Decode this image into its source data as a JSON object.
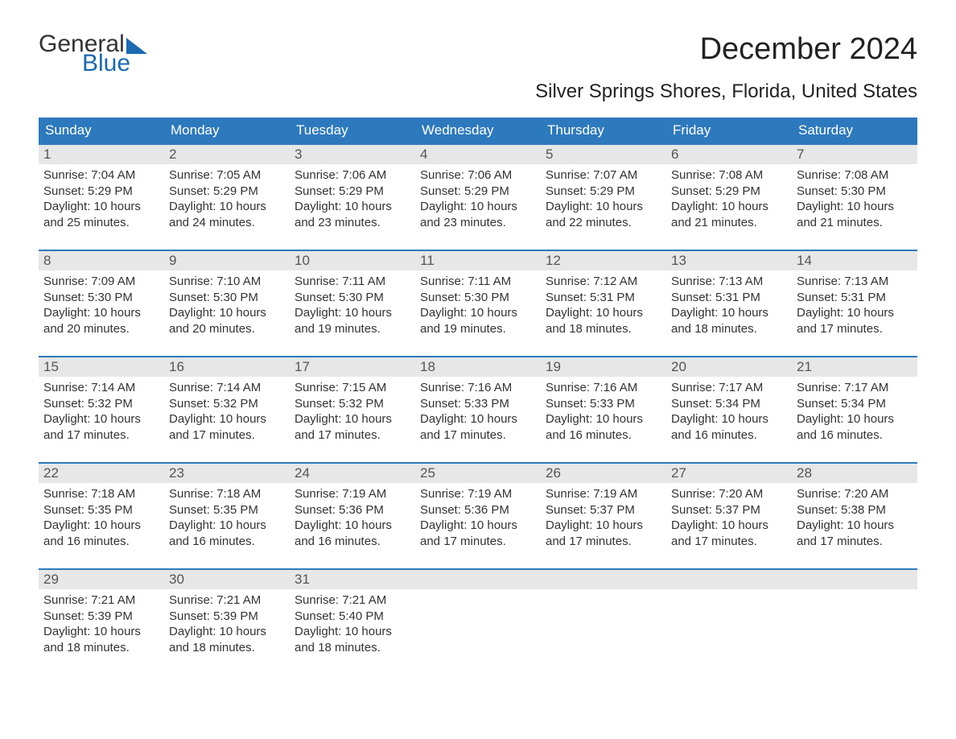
{
  "logo": {
    "part1": "General",
    "part2": "Blue"
  },
  "title": "December 2024",
  "subtitle": "Silver Springs Shores, Florida, United States",
  "colors": {
    "header_bg": "#2d79bd",
    "header_text": "#ffffff",
    "daynum_bg": "#e7e7e7",
    "week_border": "#2d79bd",
    "logo_accent": "#1b6ab2",
    "text": "#333333",
    "background": "#ffffff"
  },
  "daysOfWeek": [
    "Sunday",
    "Monday",
    "Tuesday",
    "Wednesday",
    "Thursday",
    "Friday",
    "Saturday"
  ],
  "weeks": [
    [
      {
        "n": "1",
        "sunrise": "Sunrise: 7:04 AM",
        "sunset": "Sunset: 5:29 PM",
        "dl1": "Daylight: 10 hours",
        "dl2": "and 25 minutes."
      },
      {
        "n": "2",
        "sunrise": "Sunrise: 7:05 AM",
        "sunset": "Sunset: 5:29 PM",
        "dl1": "Daylight: 10 hours",
        "dl2": "and 24 minutes."
      },
      {
        "n": "3",
        "sunrise": "Sunrise: 7:06 AM",
        "sunset": "Sunset: 5:29 PM",
        "dl1": "Daylight: 10 hours",
        "dl2": "and 23 minutes."
      },
      {
        "n": "4",
        "sunrise": "Sunrise: 7:06 AM",
        "sunset": "Sunset: 5:29 PM",
        "dl1": "Daylight: 10 hours",
        "dl2": "and 23 minutes."
      },
      {
        "n": "5",
        "sunrise": "Sunrise: 7:07 AM",
        "sunset": "Sunset: 5:29 PM",
        "dl1": "Daylight: 10 hours",
        "dl2": "and 22 minutes."
      },
      {
        "n": "6",
        "sunrise": "Sunrise: 7:08 AM",
        "sunset": "Sunset: 5:29 PM",
        "dl1": "Daylight: 10 hours",
        "dl2": "and 21 minutes."
      },
      {
        "n": "7",
        "sunrise": "Sunrise: 7:08 AM",
        "sunset": "Sunset: 5:30 PM",
        "dl1": "Daylight: 10 hours",
        "dl2": "and 21 minutes."
      }
    ],
    [
      {
        "n": "8",
        "sunrise": "Sunrise: 7:09 AM",
        "sunset": "Sunset: 5:30 PM",
        "dl1": "Daylight: 10 hours",
        "dl2": "and 20 minutes."
      },
      {
        "n": "9",
        "sunrise": "Sunrise: 7:10 AM",
        "sunset": "Sunset: 5:30 PM",
        "dl1": "Daylight: 10 hours",
        "dl2": "and 20 minutes."
      },
      {
        "n": "10",
        "sunrise": "Sunrise: 7:11 AM",
        "sunset": "Sunset: 5:30 PM",
        "dl1": "Daylight: 10 hours",
        "dl2": "and 19 minutes."
      },
      {
        "n": "11",
        "sunrise": "Sunrise: 7:11 AM",
        "sunset": "Sunset: 5:30 PM",
        "dl1": "Daylight: 10 hours",
        "dl2": "and 19 minutes."
      },
      {
        "n": "12",
        "sunrise": "Sunrise: 7:12 AM",
        "sunset": "Sunset: 5:31 PM",
        "dl1": "Daylight: 10 hours",
        "dl2": "and 18 minutes."
      },
      {
        "n": "13",
        "sunrise": "Sunrise: 7:13 AM",
        "sunset": "Sunset: 5:31 PM",
        "dl1": "Daylight: 10 hours",
        "dl2": "and 18 minutes."
      },
      {
        "n": "14",
        "sunrise": "Sunrise: 7:13 AM",
        "sunset": "Sunset: 5:31 PM",
        "dl1": "Daylight: 10 hours",
        "dl2": "and 17 minutes."
      }
    ],
    [
      {
        "n": "15",
        "sunrise": "Sunrise: 7:14 AM",
        "sunset": "Sunset: 5:32 PM",
        "dl1": "Daylight: 10 hours",
        "dl2": "and 17 minutes."
      },
      {
        "n": "16",
        "sunrise": "Sunrise: 7:14 AM",
        "sunset": "Sunset: 5:32 PM",
        "dl1": "Daylight: 10 hours",
        "dl2": "and 17 minutes."
      },
      {
        "n": "17",
        "sunrise": "Sunrise: 7:15 AM",
        "sunset": "Sunset: 5:32 PM",
        "dl1": "Daylight: 10 hours",
        "dl2": "and 17 minutes."
      },
      {
        "n": "18",
        "sunrise": "Sunrise: 7:16 AM",
        "sunset": "Sunset: 5:33 PM",
        "dl1": "Daylight: 10 hours",
        "dl2": "and 17 minutes."
      },
      {
        "n": "19",
        "sunrise": "Sunrise: 7:16 AM",
        "sunset": "Sunset: 5:33 PM",
        "dl1": "Daylight: 10 hours",
        "dl2": "and 16 minutes."
      },
      {
        "n": "20",
        "sunrise": "Sunrise: 7:17 AM",
        "sunset": "Sunset: 5:34 PM",
        "dl1": "Daylight: 10 hours",
        "dl2": "and 16 minutes."
      },
      {
        "n": "21",
        "sunrise": "Sunrise: 7:17 AM",
        "sunset": "Sunset: 5:34 PM",
        "dl1": "Daylight: 10 hours",
        "dl2": "and 16 minutes."
      }
    ],
    [
      {
        "n": "22",
        "sunrise": "Sunrise: 7:18 AM",
        "sunset": "Sunset: 5:35 PM",
        "dl1": "Daylight: 10 hours",
        "dl2": "and 16 minutes."
      },
      {
        "n": "23",
        "sunrise": "Sunrise: 7:18 AM",
        "sunset": "Sunset: 5:35 PM",
        "dl1": "Daylight: 10 hours",
        "dl2": "and 16 minutes."
      },
      {
        "n": "24",
        "sunrise": "Sunrise: 7:19 AM",
        "sunset": "Sunset: 5:36 PM",
        "dl1": "Daylight: 10 hours",
        "dl2": "and 16 minutes."
      },
      {
        "n": "25",
        "sunrise": "Sunrise: 7:19 AM",
        "sunset": "Sunset: 5:36 PM",
        "dl1": "Daylight: 10 hours",
        "dl2": "and 17 minutes."
      },
      {
        "n": "26",
        "sunrise": "Sunrise: 7:19 AM",
        "sunset": "Sunset: 5:37 PM",
        "dl1": "Daylight: 10 hours",
        "dl2": "and 17 minutes."
      },
      {
        "n": "27",
        "sunrise": "Sunrise: 7:20 AM",
        "sunset": "Sunset: 5:37 PM",
        "dl1": "Daylight: 10 hours",
        "dl2": "and 17 minutes."
      },
      {
        "n": "28",
        "sunrise": "Sunrise: 7:20 AM",
        "sunset": "Sunset: 5:38 PM",
        "dl1": "Daylight: 10 hours",
        "dl2": "and 17 minutes."
      }
    ],
    [
      {
        "n": "29",
        "sunrise": "Sunrise: 7:21 AM",
        "sunset": "Sunset: 5:39 PM",
        "dl1": "Daylight: 10 hours",
        "dl2": "and 18 minutes."
      },
      {
        "n": "30",
        "sunrise": "Sunrise: 7:21 AM",
        "sunset": "Sunset: 5:39 PM",
        "dl1": "Daylight: 10 hours",
        "dl2": "and 18 minutes."
      },
      {
        "n": "31",
        "sunrise": "Sunrise: 7:21 AM",
        "sunset": "Sunset: 5:40 PM",
        "dl1": "Daylight: 10 hours",
        "dl2": "and 18 minutes."
      },
      null,
      null,
      null,
      null
    ]
  ]
}
